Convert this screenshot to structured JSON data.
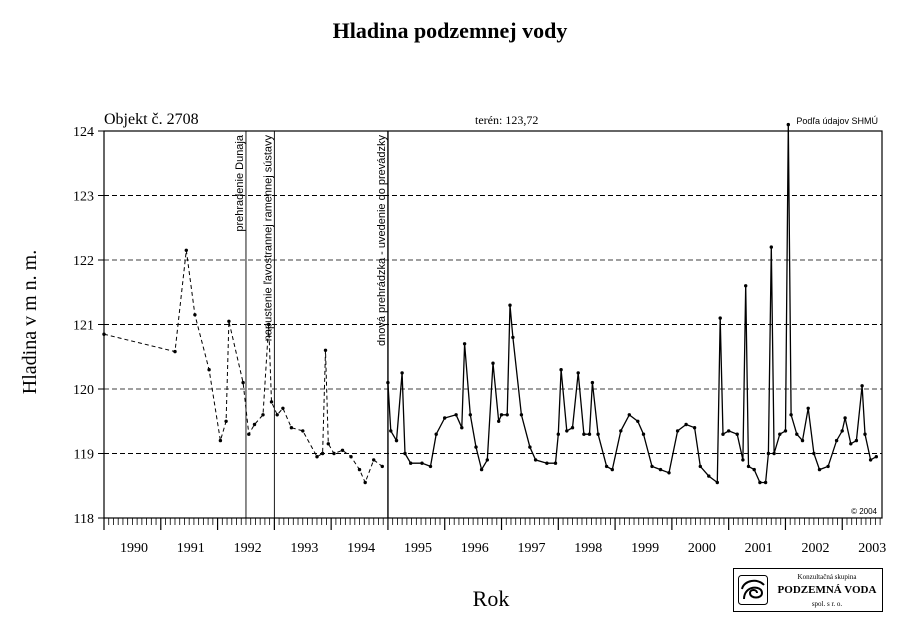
{
  "title": "Hladina podzemnej vody",
  "logo": {
    "line1": "Konzultačná skupina",
    "line2": "PODZEMNÁ VODA",
    "line3": "spol. s r. o."
  },
  "chart_data": {
    "type": "line",
    "title": "Hladina podzemnej vody",
    "xlabel": "Rok",
    "ylabel": "Hladina v m n. m.",
    "xlim": [
      1990.0,
      2003.7
    ],
    "ylim": [
      118,
      124
    ],
    "y_ticks": [
      118,
      119,
      120,
      121,
      122,
      123,
      124
    ],
    "x_tick_labels": [
      "1990",
      "1991",
      "1992",
      "1993",
      "1994",
      "1995",
      "1996",
      "1997",
      "1998",
      "1999",
      "2000",
      "2001",
      "2002",
      "2003"
    ],
    "grid": "horizontal dashed",
    "annotations": {
      "object": "Objekt č. 2708",
      "terrain": "terén: 123,72",
      "source": "Podľa údajov SHMÚ",
      "copyright": "© 2004"
    },
    "events": [
      {
        "year": 1992.5,
        "label": "prehradenie Dunaja"
      },
      {
        "year": 1993.0,
        "label": "napustenie ľavostrannej ramennej sústavy"
      },
      {
        "year": 1995.0,
        "label": "dnová prehrádzka - uvedenie do prevádzky"
      }
    ],
    "series": [
      {
        "style": "dashed",
        "points": [
          [
            1990.0,
            120.85
          ],
          [
            1991.25,
            120.58
          ],
          [
            1991.45,
            122.15
          ],
          [
            1991.6,
            121.15
          ],
          [
            1991.85,
            120.3
          ],
          [
            1992.05,
            119.2
          ],
          [
            1992.15,
            119.5
          ],
          [
            1992.2,
            121.05
          ],
          [
            1992.45,
            120.1
          ],
          [
            1992.55,
            119.3
          ],
          [
            1992.65,
            119.45
          ],
          [
            1992.8,
            119.6
          ],
          [
            1992.9,
            121.0
          ],
          [
            1992.95,
            119.8
          ],
          [
            1993.05,
            119.6
          ],
          [
            1993.15,
            119.7
          ],
          [
            1993.3,
            119.4
          ],
          [
            1993.5,
            119.35
          ],
          [
            1993.75,
            118.95
          ],
          [
            1993.85,
            119.0
          ],
          [
            1993.9,
            120.6
          ],
          [
            1993.95,
            119.15
          ],
          [
            1994.05,
            119.0
          ],
          [
            1994.2,
            119.05
          ],
          [
            1994.35,
            118.95
          ],
          [
            1994.5,
            118.75
          ],
          [
            1994.6,
            118.55
          ],
          [
            1994.75,
            118.9
          ],
          [
            1994.9,
            118.8
          ]
        ]
      },
      {
        "style": "solid",
        "points": [
          [
            1995.0,
            120.1
          ],
          [
            1995.05,
            119.35
          ],
          [
            1995.15,
            119.2
          ],
          [
            1995.25,
            120.25
          ],
          [
            1995.3,
            119.0
          ],
          [
            1995.4,
            118.85
          ],
          [
            1995.6,
            118.85
          ],
          [
            1995.75,
            118.8
          ],
          [
            1995.85,
            119.3
          ],
          [
            1996.0,
            119.55
          ],
          [
            1996.2,
            119.6
          ],
          [
            1996.3,
            119.4
          ],
          [
            1996.35,
            120.7
          ],
          [
            1996.45,
            119.6
          ],
          [
            1996.55,
            119.1
          ],
          [
            1996.65,
            118.75
          ],
          [
            1996.75,
            118.9
          ],
          [
            1996.85,
            120.4
          ],
          [
            1996.95,
            119.5
          ],
          [
            1997.0,
            119.6
          ],
          [
            1997.1,
            119.6
          ],
          [
            1997.15,
            121.3
          ],
          [
            1997.2,
            120.8
          ],
          [
            1997.35,
            119.6
          ],
          [
            1997.5,
            119.1
          ],
          [
            1997.6,
            118.9
          ],
          [
            1997.8,
            118.85
          ],
          [
            1997.95,
            118.85
          ],
          [
            1998.0,
            119.3
          ],
          [
            1998.05,
            120.3
          ],
          [
            1998.15,
            119.35
          ],
          [
            1998.25,
            119.4
          ],
          [
            1998.35,
            120.25
          ],
          [
            1998.45,
            119.3
          ],
          [
            1998.55,
            119.3
          ],
          [
            1998.6,
            120.1
          ],
          [
            1998.7,
            119.3
          ],
          [
            1998.85,
            118.8
          ],
          [
            1998.95,
            118.75
          ],
          [
            1999.1,
            119.35
          ],
          [
            1999.25,
            119.6
          ],
          [
            1999.4,
            119.5
          ],
          [
            1999.5,
            119.3
          ],
          [
            1999.65,
            118.8
          ],
          [
            1999.8,
            118.75
          ],
          [
            1999.95,
            118.7
          ],
          [
            2000.1,
            119.35
          ],
          [
            2000.25,
            119.45
          ],
          [
            2000.4,
            119.4
          ],
          [
            2000.5,
            118.8
          ],
          [
            2000.65,
            118.65
          ],
          [
            2000.8,
            118.55
          ],
          [
            2000.85,
            121.1
          ],
          [
            2000.9,
            119.3
          ],
          [
            2001.0,
            119.35
          ],
          [
            2001.15,
            119.3
          ],
          [
            2001.25,
            118.9
          ],
          [
            2001.3,
            121.6
          ],
          [
            2001.35,
            118.8
          ],
          [
            2001.45,
            118.75
          ],
          [
            2001.55,
            118.55
          ],
          [
            2001.65,
            118.55
          ],
          [
            2001.7,
            119.0
          ],
          [
            2001.75,
            122.2
          ],
          [
            2001.8,
            119.0
          ],
          [
            2001.9,
            119.3
          ],
          [
            2002.0,
            119.35
          ],
          [
            2002.05,
            124.1
          ],
          [
            2002.1,
            119.6
          ],
          [
            2002.2,
            119.3
          ],
          [
            2002.3,
            119.2
          ],
          [
            2002.4,
            119.7
          ],
          [
            2002.5,
            119.0
          ],
          [
            2002.6,
            118.75
          ],
          [
            2002.75,
            118.8
          ],
          [
            2002.9,
            119.2
          ],
          [
            2003.0,
            119.35
          ],
          [
            2003.05,
            119.55
          ],
          [
            2003.15,
            119.15
          ],
          [
            2003.25,
            119.2
          ],
          [
            2003.35,
            120.05
          ],
          [
            2003.4,
            119.3
          ],
          [
            2003.5,
            118.9
          ],
          [
            2003.6,
            118.95
          ]
        ]
      }
    ]
  }
}
